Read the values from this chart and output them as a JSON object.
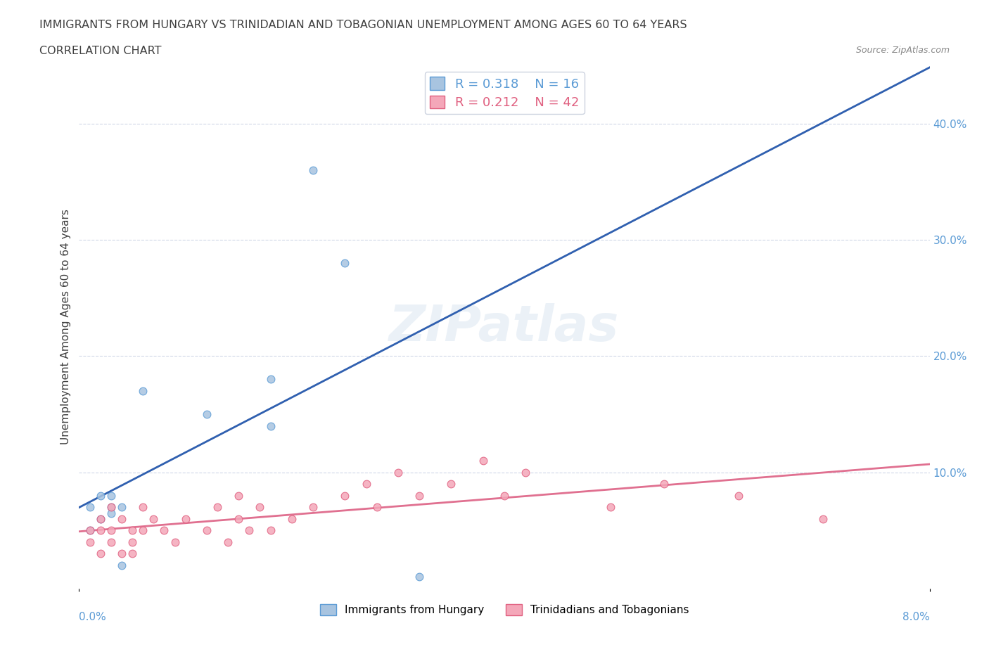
{
  "title_line1": "IMMIGRANTS FROM HUNGARY VS TRINIDADIAN AND TOBAGONIAN UNEMPLOYMENT AMONG AGES 60 TO 64 YEARS",
  "title_line2": "CORRELATION CHART",
  "source_text": "Source: ZipAtlas.com",
  "xlabel_bottom_left": "0.0%",
  "xlabel_bottom_right": "8.0%",
  "ylabel": "Unemployment Among Ages 60 to 64 years",
  "legend_blue_r": "R = 0.318",
  "legend_blue_n": "N = 16",
  "legend_pink_r": "R = 0.212",
  "legend_pink_n": "N = 42",
  "legend_label_blue": "Immigrants from Hungary",
  "legend_label_pink": "Trinidadians and Tobagonians",
  "watermark": "ZIPatlas",
  "blue_color": "#a8c4e0",
  "blue_dark": "#5b9bd5",
  "pink_color": "#f4a7b9",
  "pink_dark": "#e06080",
  "trend_blue_color": "#3060b0",
  "trend_dashed_color": "#b0b8c8",
  "trend_pink_color": "#e07090",
  "xmin": 0.0,
  "xmax": 0.08,
  "ymin": 0.0,
  "ymax": 0.45,
  "yticks": [
    0.0,
    0.1,
    0.2,
    0.3,
    0.4
  ],
  "ytick_labels": [
    "",
    "10.0%",
    "20.0%",
    "30.0%",
    "40.0%"
  ],
  "hungary_x": [
    0.001,
    0.001,
    0.002,
    0.002,
    0.003,
    0.003,
    0.003,
    0.004,
    0.004,
    0.006,
    0.012,
    0.018,
    0.018,
    0.022,
    0.025,
    0.032
  ],
  "hungary_y": [
    0.05,
    0.07,
    0.06,
    0.08,
    0.07,
    0.065,
    0.08,
    0.07,
    0.02,
    0.17,
    0.15,
    0.18,
    0.14,
    0.36,
    0.28,
    0.01
  ],
  "tnt_x": [
    0.001,
    0.001,
    0.002,
    0.002,
    0.002,
    0.003,
    0.003,
    0.003,
    0.004,
    0.004,
    0.005,
    0.005,
    0.005,
    0.006,
    0.006,
    0.007,
    0.008,
    0.009,
    0.01,
    0.012,
    0.013,
    0.014,
    0.015,
    0.015,
    0.016,
    0.017,
    0.018,
    0.02,
    0.022,
    0.025,
    0.027,
    0.028,
    0.03,
    0.032,
    0.035,
    0.038,
    0.04,
    0.042,
    0.05,
    0.055,
    0.062,
    0.07
  ],
  "tnt_y": [
    0.05,
    0.04,
    0.06,
    0.05,
    0.03,
    0.04,
    0.05,
    0.07,
    0.06,
    0.03,
    0.04,
    0.05,
    0.03,
    0.07,
    0.05,
    0.06,
    0.05,
    0.04,
    0.06,
    0.05,
    0.07,
    0.04,
    0.08,
    0.06,
    0.05,
    0.07,
    0.05,
    0.06,
    0.07,
    0.08,
    0.09,
    0.07,
    0.1,
    0.08,
    0.09,
    0.11,
    0.08,
    0.1,
    0.07,
    0.09,
    0.08,
    0.06
  ]
}
